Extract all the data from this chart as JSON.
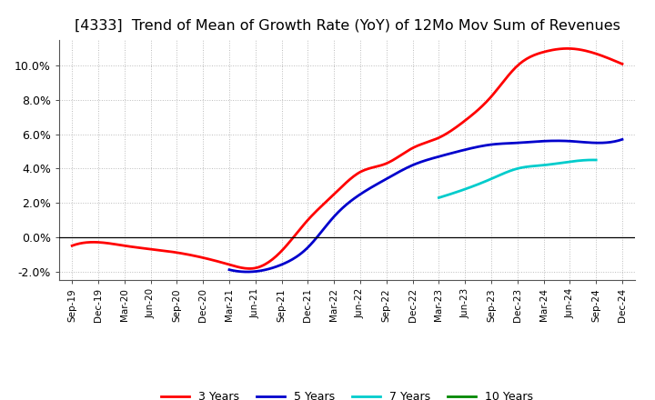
{
  "title": "[4333]  Trend of Mean of Growth Rate (YoY) of 12Mo Mov Sum of Revenues",
  "title_fontsize": 11.5,
  "background_color": "#ffffff",
  "grid_color": "#aaaaaa",
  "ylim": [
    -0.025,
    0.115
  ],
  "yticks": [
    -0.02,
    0.0,
    0.02,
    0.04,
    0.06,
    0.08,
    0.1
  ],
  "ytick_labels": [
    "-2.0%",
    "0.0%",
    "2.0%",
    "4.0%",
    "6.0%",
    "8.0%",
    "10.0%"
  ],
  "x_labels": [
    "Sep-19",
    "Dec-19",
    "Mar-20",
    "Jun-20",
    "Sep-20",
    "Dec-20",
    "Mar-21",
    "Jun-21",
    "Sep-21",
    "Dec-21",
    "Mar-22",
    "Jun-22",
    "Sep-22",
    "Dec-22",
    "Mar-23",
    "Jun-23",
    "Sep-23",
    "Dec-23",
    "Mar-24",
    "Jun-24",
    "Sep-24",
    "Dec-24"
  ],
  "legend_labels": [
    "3 Years",
    "5 Years",
    "7 Years",
    "10 Years"
  ],
  "legend_colors": [
    "#ff0000",
    "#0000cc",
    "#00cccc",
    "#008800"
  ],
  "line_width": 2.0,
  "series_3yr_x": [
    0,
    1,
    2,
    3,
    4,
    5,
    6,
    7,
    8,
    9,
    10,
    11,
    12,
    13,
    14,
    15,
    16,
    17,
    18,
    19,
    20,
    21
  ],
  "series_3yr_y": [
    -0.005,
    -0.003,
    -0.005,
    -0.007,
    -0.009,
    -0.012,
    -0.016,
    -0.018,
    -0.008,
    0.01,
    0.025,
    0.038,
    0.043,
    0.052,
    0.058,
    0.068,
    0.082,
    0.1,
    0.108,
    0.11,
    0.107,
    0.101
  ],
  "series_5yr_x": [
    6,
    7,
    8,
    9,
    10,
    11,
    12,
    13,
    14,
    15,
    16,
    17,
    18,
    19,
    20,
    21
  ],
  "series_5yr_y": [
    -0.019,
    -0.02,
    -0.016,
    -0.006,
    0.012,
    0.025,
    0.034,
    0.042,
    0.047,
    0.051,
    0.054,
    0.055,
    0.056,
    0.056,
    0.055,
    0.057
  ],
  "series_7yr_x": [
    14,
    15,
    16,
    17,
    18,
    19,
    20
  ],
  "series_7yr_y": [
    0.023,
    0.028,
    0.034,
    0.04,
    0.042,
    0.044,
    0.045
  ],
  "series_10yr_x": [],
  "series_10yr_y": []
}
